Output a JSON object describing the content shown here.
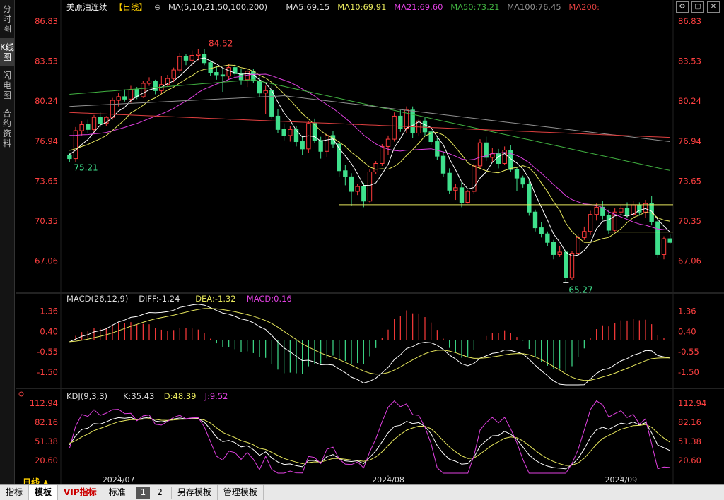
{
  "sidebar": [
    {
      "label": "分时图",
      "active": false
    },
    {
      "label": "K线图",
      "active": true
    },
    {
      "label": "闪电图",
      "active": false
    },
    {
      "label": "合约资料",
      "active": false
    }
  ],
  "main_header": {
    "title": "美原油连续",
    "period": "【日线】",
    "ma_params": "MA(5,10,21,50,100,200)",
    "ma5": "MA5:69.15",
    "ma10": "MA10:69.91",
    "ma21": "MA21:69.60",
    "ma50": "MA50:73.21",
    "ma100": "MA100:76.45",
    "ma200": "MA200:"
  },
  "macd_header": {
    "params": "MACD(26,12,9)",
    "diff": "DIFF:-1.24",
    "dea": "DEA:-1.32",
    "macd": "MACD:0.16"
  },
  "kdj_header": {
    "params": "KDJ(9,3,3)",
    "k": "K:35.43",
    "d": "D:48.39",
    "j": "J:9.52"
  },
  "price_ticks": [
    "86.83",
    "83.53",
    "80.24",
    "76.94",
    "73.65",
    "70.35",
    "67.06"
  ],
  "macd_ticks": [
    "1.36",
    "0.40",
    "-0.55",
    "-1.50"
  ],
  "kdj_ticks": [
    "112.94",
    "82.16",
    "51.38",
    "20.60"
  ],
  "annotations": {
    "high": "84.52",
    "low_left": "75.21",
    "low": "65.27"
  },
  "date_labels": [
    "2024/07",
    "2024/08",
    "2024/09"
  ],
  "period_label": "日线 ▲",
  "bottom_tabs": [
    {
      "label": "指标",
      "active": false,
      "vip": false
    },
    {
      "label": "模板",
      "active": true,
      "vip": false
    },
    {
      "label": "VIP指标",
      "active": false,
      "vip": true
    },
    {
      "label": "标准",
      "active": false,
      "vip": false
    }
  ],
  "pages": [
    "1",
    "2"
  ],
  "bottom_tabs2": [
    "另存模板",
    "管理模板"
  ],
  "colors": {
    "up": "#ff3b3b",
    "down": "#3fe08c",
    "ma5": "#ffffff",
    "ma10": "#e6e65c",
    "ma21": "#e040e0",
    "ma50": "#40b040",
    "ma100": "#909090",
    "ma200": "#e04040",
    "hline": "#e6e65c"
  },
  "chart_data": {
    "type": "candlestick",
    "price_range": [
      64.6,
      87.4
    ],
    "candles": [
      [
        75.8,
        76.0,
        75.2,
        75.5
      ],
      [
        75.5,
        78.1,
        75.2,
        77.8
      ],
      [
        77.8,
        78.6,
        77.4,
        78.3
      ],
      [
        78.3,
        78.7,
        77.6,
        77.9
      ],
      [
        77.9,
        79.1,
        77.5,
        78.9
      ],
      [
        78.9,
        79.3,
        78.1,
        78.4
      ],
      [
        78.4,
        79.0,
        78.2,
        78.9
      ],
      [
        78.9,
        80.5,
        78.7,
        80.3
      ],
      [
        80.3,
        80.9,
        79.8,
        80.6
      ],
      [
        80.6,
        81.2,
        80.2,
        80.4
      ],
      [
        80.4,
        81.5,
        80.1,
        81.2
      ],
      [
        81.2,
        81.4,
        80.4,
        80.6
      ],
      [
        80.6,
        81.9,
        80.5,
        81.7
      ],
      [
        81.7,
        82.2,
        81.5,
        81.9
      ],
      [
        81.9,
        82.0,
        80.8,
        81.1
      ],
      [
        81.1,
        82.3,
        80.8,
        81.6
      ],
      [
        81.6,
        82.4,
        81.4,
        82.1
      ],
      [
        82.1,
        83.0,
        81.8,
        82.8
      ],
      [
        82.8,
        84.2,
        82.5,
        83.9
      ],
      [
        83.9,
        84.1,
        83.2,
        83.6
      ],
      [
        83.6,
        84.4,
        83.1,
        84.0
      ],
      [
        84.0,
        84.5,
        83.6,
        84.1
      ],
      [
        84.1,
        84.52,
        83.2,
        83.4
      ],
      [
        83.4,
        83.6,
        82.3,
        82.6
      ],
      [
        82.6,
        83.1,
        82.0,
        82.4
      ],
      [
        82.4,
        83.0,
        81.0,
        82.3
      ],
      [
        82.3,
        83.3,
        82.0,
        83.0
      ],
      [
        83.0,
        83.3,
        82.2,
        82.5
      ],
      [
        82.5,
        82.9,
        81.6,
        82.0
      ],
      [
        82.0,
        82.9,
        81.4,
        82.7
      ],
      [
        82.7,
        82.9,
        81.7,
        81.9
      ],
      [
        81.9,
        82.2,
        80.6,
        80.9
      ],
      [
        80.9,
        81.5,
        79.2,
        81.1
      ],
      [
        81.1,
        81.5,
        78.8,
        79.0
      ],
      [
        79.0,
        79.6,
        77.6,
        77.9
      ],
      [
        77.9,
        78.4,
        77.0,
        77.4
      ],
      [
        77.4,
        78.2,
        76.9,
        77.9
      ],
      [
        77.9,
        78.2,
        76.5,
        76.9
      ],
      [
        76.9,
        77.4,
        75.8,
        76.3
      ],
      [
        76.3,
        78.6,
        76.0,
        78.4
      ],
      [
        78.4,
        78.8,
        76.8,
        77.0
      ],
      [
        77.0,
        77.3,
        75.5,
        76.1
      ],
      [
        76.1,
        77.6,
        75.6,
        77.4
      ],
      [
        77.4,
        77.8,
        76.4,
        76.7
      ],
      [
        76.7,
        77.0,
        74.0,
        74.5
      ],
      [
        74.5,
        75.0,
        73.3,
        74.0
      ],
      [
        74.0,
        74.3,
        71.6,
        72.8
      ],
      [
        72.8,
        73.4,
        72.5,
        73.2
      ],
      [
        73.2,
        73.5,
        71.5,
        72.0
      ],
      [
        72.0,
        74.6,
        71.9,
        74.4
      ],
      [
        74.4,
        75.3,
        74.2,
        75.1
      ],
      [
        75.1,
        76.7,
        74.9,
        76.5
      ],
      [
        76.5,
        77.4,
        75.8,
        77.1
      ],
      [
        77.1,
        79.3,
        76.9,
        79.0
      ],
      [
        79.0,
        79.5,
        77.7,
        78.0
      ],
      [
        78.0,
        79.8,
        77.6,
        79.5
      ],
      [
        79.5,
        79.8,
        77.2,
        77.6
      ],
      [
        77.6,
        78.8,
        77.4,
        78.6
      ],
      [
        78.6,
        78.9,
        77.4,
        77.7
      ],
      [
        77.7,
        78.1,
        76.6,
        76.9
      ],
      [
        76.9,
        77.2,
        75.4,
        75.7
      ],
      [
        75.7,
        76.1,
        74.0,
        74.3
      ],
      [
        74.3,
        74.7,
        72.6,
        72.9
      ],
      [
        72.9,
        73.4,
        72.1,
        73.1
      ],
      [
        73.1,
        73.6,
        71.5,
        71.9
      ],
      [
        71.9,
        72.9,
        71.8,
        72.8
      ],
      [
        72.8,
        75.1,
        72.6,
        74.9
      ],
      [
        74.9,
        77.1,
        74.6,
        76.8
      ],
      [
        76.8,
        77.3,
        75.3,
        75.6
      ],
      [
        75.6,
        76.4,
        75.2,
        75.9
      ],
      [
        75.9,
        76.3,
        74.7,
        75.1
      ],
      [
        75.1,
        76.5,
        75.0,
        76.2
      ],
      [
        76.2,
        76.6,
        74.4,
        74.6
      ],
      [
        74.6,
        74.8,
        72.8,
        73.9
      ],
      [
        73.9,
        74.1,
        73.1,
        73.4
      ],
      [
        73.4,
        73.8,
        70.8,
        71.1
      ],
      [
        71.1,
        71.3,
        69.5,
        69.8
      ],
      [
        69.8,
        70.3,
        69.0,
        69.3
      ],
      [
        69.3,
        69.5,
        68.3,
        68.6
      ],
      [
        68.6,
        68.8,
        67.2,
        67.6
      ],
      [
        67.6,
        68.3,
        67.4,
        67.8
      ],
      [
        67.8,
        68.1,
        65.27,
        65.7
      ],
      [
        65.7,
        67.9,
        65.5,
        67.7
      ],
      [
        67.7,
        69.3,
        67.5,
        69.0
      ],
      [
        69.0,
        69.9,
        68.8,
        69.5
      ],
      [
        69.5,
        71.2,
        69.2,
        70.9
      ],
      [
        70.9,
        71.8,
        70.4,
        71.5
      ],
      [
        71.5,
        72.0,
        70.5,
        70.8
      ],
      [
        70.8,
        71.3,
        69.3,
        69.6
      ],
      [
        69.6,
        71.4,
        69.5,
        71.1
      ],
      [
        71.1,
        71.7,
        70.9,
        71.4
      ],
      [
        71.4,
        71.9,
        70.6,
        70.9
      ],
      [
        70.9,
        72.0,
        70.7,
        71.7
      ],
      [
        71.7,
        71.9,
        70.8,
        71.1
      ],
      [
        71.1,
        72.1,
        70.6,
        71.8
      ],
      [
        71.8,
        72.4,
        70.0,
        70.3
      ],
      [
        70.3,
        70.6,
        67.3,
        67.6
      ],
      [
        67.6,
        69.1,
        67.2,
        68.9
      ],
      [
        68.9,
        69.3,
        68.5,
        68.6
      ]
    ],
    "hlines": [
      84.52,
      71.7,
      69.45
    ],
    "macd_range": [
      -2.1,
      1.7
    ],
    "kdj_range": [
      0,
      120
    ]
  }
}
